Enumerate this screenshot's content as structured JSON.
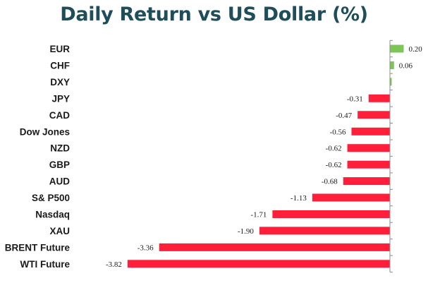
{
  "colors": {
    "title": "#1f4e5a",
    "positive": "#7dc559",
    "negative": "#ff1f3a",
    "axis": "#8c8c8c",
    "text": "#1a1a1a"
  },
  "chart_data": {
    "type": "bar",
    "orientation": "horizontal",
    "title": "Daily Return vs US Dollar (%)",
    "xlabel": "",
    "ylabel": "",
    "xlim": [
      -3.82,
      0.2
    ],
    "grid": false,
    "legend": "none",
    "categories": [
      "EUR",
      "CHF",
      "DXY",
      "JPY",
      "CAD",
      "Dow Jones",
      "NZD",
      "GBP",
      "AUD",
      "S& P500",
      "Nasdaq",
      "XAU",
      "BRENT Future",
      "WTI Future"
    ],
    "values": [
      0.2,
      0.06,
      null,
      -0.31,
      -0.47,
      -0.56,
      -0.62,
      -0.62,
      -0.68,
      -1.13,
      -1.71,
      -1.9,
      -3.36,
      -3.82
    ],
    "dxy_bar_value": 0.02,
    "data_labels": [
      "0.20",
      "0.06",
      "",
      "-0.31",
      "-0.47",
      "-0.56",
      "-0.62",
      "-0.62",
      "-0.68",
      "-1.13",
      "-1.71",
      "-1.90",
      "-3.36",
      "-3.82"
    ]
  }
}
